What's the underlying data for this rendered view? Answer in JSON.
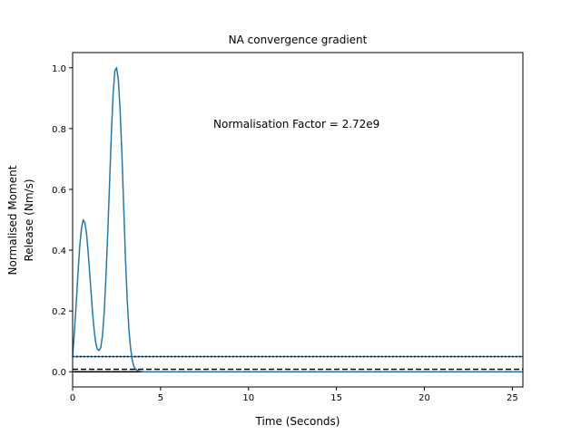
{
  "chart_data": {
    "type": "line",
    "title": "NA convergence gradient",
    "xlabel": "Time (Seconds)",
    "ylabel_lines": [
      "Normalised Moment",
      "Release (Nm/s)"
    ],
    "annotation": "Normalisation Factor = 2.72e9",
    "xlim": [
      0,
      25.6
    ],
    "ylim": [
      -0.05,
      1.05
    ],
    "xticks": [
      0,
      5,
      10,
      15,
      20,
      25
    ],
    "yticks": [
      0.0,
      0.2,
      0.4,
      0.6,
      0.8,
      1.0
    ],
    "xtick_labels": [
      "0",
      "5",
      "10",
      "15",
      "20",
      "25"
    ],
    "ytick_labels": [
      "0.0",
      "0.2",
      "0.4",
      "0.6",
      "0.8",
      "1.0"
    ],
    "grid": false,
    "series": [
      {
        "color": "#1f77b4",
        "x": [
          0,
          0.1,
          0.2,
          0.3,
          0.4,
          0.5,
          0.6,
          0.7,
          0.8,
          0.9,
          1.0,
          1.1,
          1.2,
          1.3,
          1.4,
          1.5,
          1.6,
          1.7,
          1.8,
          1.9,
          2.0,
          2.1,
          2.2,
          2.3,
          2.4,
          2.5,
          2.6,
          2.7,
          2.8,
          2.9,
          3.0,
          3.1,
          3.2,
          3.3,
          3.4,
          3.5,
          3.6,
          3.7,
          3.8,
          3.9,
          4.0,
          4.1,
          4.2,
          4.3,
          4.4,
          4.5,
          4.6,
          4.8,
          5.0,
          6.0,
          8.0,
          10.0,
          15.0,
          20.0,
          25.6
        ],
        "y": [
          0.05,
          0.13,
          0.22,
          0.32,
          0.41,
          0.47,
          0.5,
          0.49,
          0.45,
          0.38,
          0.3,
          0.22,
          0.15,
          0.1,
          0.075,
          0.07,
          0.08,
          0.12,
          0.2,
          0.32,
          0.46,
          0.62,
          0.78,
          0.91,
          0.99,
          1.0,
          0.96,
          0.86,
          0.72,
          0.55,
          0.38,
          0.24,
          0.14,
          0.075,
          0.035,
          0.015,
          0.008,
          0.004,
          0.002,
          0.001,
          0.0,
          0.0,
          0.0,
          0.0,
          0.0,
          0.0,
          0.0,
          0.0,
          0.0,
          0.0,
          0.0,
          0.0,
          0.0,
          0.0,
          0.0
        ]
      }
    ],
    "hlines": [
      {
        "y": 0.05,
        "color": "#1f77b4",
        "style": "solid"
      },
      {
        "y": 0.05,
        "color": "#000000",
        "style": "dotted"
      },
      {
        "y": 0.0,
        "color": "#000000",
        "style": "solid"
      },
      {
        "y": 0.008,
        "color": "#000000",
        "style": "dashed"
      }
    ]
  }
}
